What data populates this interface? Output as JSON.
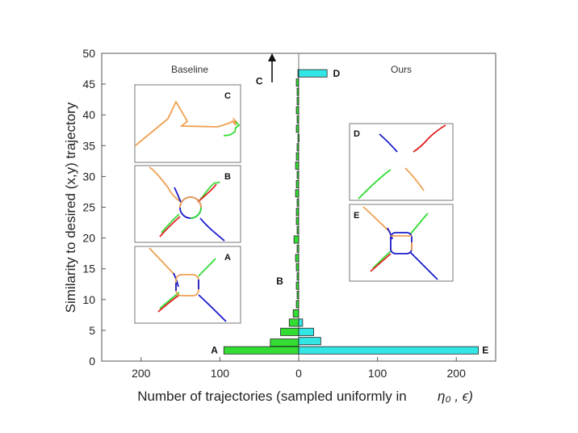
{
  "chart_data": {
    "type": "bar",
    "orientation": "horizontal",
    "xlabel": "Number of trajectories (sampled uniformly in",
    "xlabel_math": "η₀ , ϵ)",
    "ylabel": "Similarity to desired (x,y) trajectory",
    "xlim": [
      -250,
      250
    ],
    "ylim": [
      0,
      50
    ],
    "x_ticks": [
      {
        "value": -200,
        "label": "200"
      },
      {
        "value": -100,
        "label": "100"
      },
      {
        "value": 0,
        "label": "0"
      },
      {
        "value": 100,
        "label": "100"
      },
      {
        "value": 200,
        "label": "200"
      }
    ],
    "y_ticks": [
      "0",
      "5",
      "10",
      "15",
      "20",
      "25",
      "30",
      "35",
      "40",
      "45",
      "50"
    ],
    "grid": false,
    "panel_titles": {
      "left": "Baseline",
      "right": "Ours"
    },
    "series": [
      {
        "name": "Baseline",
        "side": "left",
        "color": "#33dd33",
        "bins": [
          {
            "y": 1.75,
            "count": 95
          },
          {
            "y": 3.0,
            "count": 36
          },
          {
            "y": 4.75,
            "count": 23
          },
          {
            "y": 6.25,
            "count": 12
          },
          {
            "y": 7.75,
            "count": 7
          },
          {
            "y": 9.25,
            "count": 3
          },
          {
            "y": 10.75,
            "count": 2
          },
          {
            "y": 12.25,
            "count": 3
          },
          {
            "y": 13.75,
            "count": 2
          },
          {
            "y": 15.25,
            "count": 3
          },
          {
            "y": 16.75,
            "count": 4
          },
          {
            "y": 18.25,
            "count": 2
          },
          {
            "y": 19.75,
            "count": 6
          },
          {
            "y": 21.25,
            "count": 2
          },
          {
            "y": 22.75,
            "count": 3
          },
          {
            "y": 24.25,
            "count": 3
          },
          {
            "y": 25.75,
            "count": 2
          },
          {
            "y": 27.25,
            "count": 4
          },
          {
            "y": 28.75,
            "count": 3
          },
          {
            "y": 30.25,
            "count": 2
          },
          {
            "y": 31.75,
            "count": 4
          },
          {
            "y": 33.25,
            "count": 3
          },
          {
            "y": 34.75,
            "count": 2
          },
          {
            "y": 36.25,
            "count": 1
          },
          {
            "y": 37.75,
            "count": 3
          },
          {
            "y": 39.25,
            "count": 2
          },
          {
            "y": 40.75,
            "count": 3
          },
          {
            "y": 42.25,
            "count": 2
          },
          {
            "y": 43.75,
            "count": 2
          },
          {
            "y": 45.25,
            "count": 3
          },
          {
            "y": 46.75,
            "count": 1
          }
        ]
      },
      {
        "name": "Ours",
        "side": "right",
        "color": "#33e6e6",
        "bins": [
          {
            "y": 1.75,
            "count": 228
          },
          {
            "y": 3.25,
            "count": 28
          },
          {
            "y": 4.75,
            "count": 19
          },
          {
            "y": 6.25,
            "count": 5
          },
          {
            "y": 46.75,
            "count": 36
          }
        ]
      }
    ],
    "annotations": [
      {
        "label": "A",
        "x": -107,
        "y": 1.75
      },
      {
        "label": "E",
        "x": 237,
        "y": 1.75
      },
      {
        "label": "B",
        "x": -24,
        "y": 13
      },
      {
        "label": "C",
        "x": -50,
        "y": 45.5
      },
      {
        "label": "D",
        "x": 48,
        "y": 46.75
      }
    ],
    "arrow_note": "off-scale baseline bar near C (arrow pointing up)"
  },
  "insets": [
    {
      "id": "C",
      "label": "C",
      "side": "left"
    },
    {
      "id": "B",
      "label": "B",
      "side": "left"
    },
    {
      "id": "A",
      "label": "A",
      "side": "left"
    },
    {
      "id": "D",
      "label": "D",
      "side": "right"
    },
    {
      "id": "E",
      "label": "E",
      "side": "right"
    }
  ],
  "colors": {
    "baseline": "#33dd33",
    "ours": "#33e6e6",
    "traj_orange": "#f0a050",
    "traj_green": "#33dd33",
    "traj_red": "#e02020",
    "traj_blue": "#1a1acc"
  }
}
